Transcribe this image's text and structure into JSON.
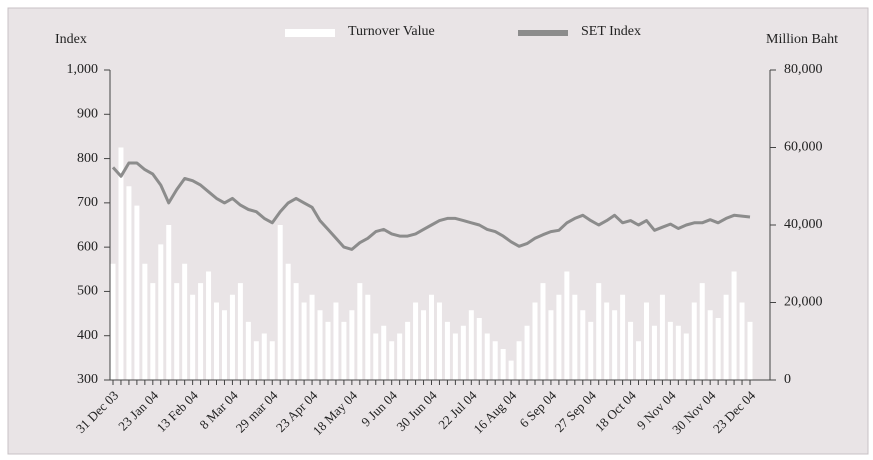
{
  "chart_data": {
    "type": "bar-line",
    "y_label": "Index",
    "y2_label": "Million Baht",
    "legend_position": "top",
    "categories": [
      "31 Dec 03",
      null,
      null,
      null,
      null,
      "23 Jan 04",
      null,
      null,
      null,
      null,
      "13 Feb 04",
      null,
      null,
      null,
      null,
      "8 Mar 04",
      null,
      null,
      null,
      null,
      "29 mar 04",
      null,
      null,
      null,
      null,
      "23 Apr 04",
      null,
      null,
      null,
      null,
      "18 May 04",
      null,
      null,
      null,
      null,
      "9 Jun 04",
      null,
      null,
      null,
      null,
      "30 Jun 04",
      null,
      null,
      null,
      null,
      "22 Jul 04",
      null,
      null,
      null,
      null,
      "16 Aug 04",
      null,
      null,
      null,
      null,
      "6 Sep 04",
      null,
      null,
      null,
      null,
      "27 Sep 04",
      null,
      null,
      null,
      null,
      "18 Oct 04",
      null,
      null,
      null,
      null,
      "9 Nov 04",
      null,
      null,
      null,
      null,
      "30 Nov 04",
      null,
      null,
      null,
      null,
      "23 Dec 04"
    ],
    "series": [
      {
        "name": "Turnover Value",
        "type": "bar",
        "axis": "y2",
        "color": "#ffffff",
        "values": [
          30000,
          60000,
          50000,
          45000,
          30000,
          25000,
          35000,
          40000,
          25000,
          30000,
          22000,
          25000,
          28000,
          20000,
          18000,
          22000,
          25000,
          15000,
          10000,
          12000,
          10000,
          40000,
          30000,
          25000,
          20000,
          22000,
          18000,
          15000,
          20000,
          15000,
          18000,
          25000,
          22000,
          12000,
          14000,
          10000,
          12000,
          15000,
          20000,
          18000,
          22000,
          20000,
          15000,
          12000,
          14000,
          18000,
          16000,
          12000,
          10000,
          8000,
          5000,
          10000,
          14000,
          20000,
          25000,
          18000,
          22000,
          28000,
          22000,
          18000,
          15000,
          25000,
          20000,
          18000,
          22000,
          15000,
          10000,
          20000,
          14000,
          22000,
          15000,
          14000,
          12000,
          20000,
          25000,
          18000,
          16000,
          22000,
          28000,
          20000,
          15000
        ]
      },
      {
        "name": "SET Index",
        "type": "line",
        "axis": "y",
        "color": "#8c8c8c",
        "values": [
          780,
          760,
          790,
          790,
          775,
          765,
          740,
          700,
          730,
          755,
          750,
          740,
          725,
          710,
          700,
          710,
          695,
          685,
          680,
          665,
          655,
          680,
          700,
          710,
          700,
          690,
          660,
          640,
          620,
          600,
          595,
          610,
          620,
          635,
          640,
          630,
          625,
          625,
          630,
          640,
          650,
          660,
          665,
          665,
          660,
          655,
          650,
          640,
          635,
          625,
          612,
          602,
          608,
          620,
          628,
          635,
          638,
          655,
          665,
          672,
          660,
          650,
          660,
          672,
          655,
          660,
          650,
          660,
          638,
          645,
          652,
          642,
          650,
          655,
          655,
          662,
          655,
          665,
          672,
          670,
          668
        ]
      }
    ],
    "ylim": [
      300,
      1000
    ],
    "yticks": [
      300,
      400,
      500,
      600,
      700,
      800,
      900,
      {
        "value": 1000,
        "label": "1,000"
      }
    ],
    "y2lim": [
      0,
      80000
    ],
    "y2ticks": [
      0,
      {
        "value": 20000,
        "label": "20,000"
      },
      {
        "value": 40000,
        "label": "40,000"
      },
      {
        "value": 60000,
        "label": "60,000"
      },
      {
        "value": 80000,
        "label": "80,000"
      }
    ]
  }
}
